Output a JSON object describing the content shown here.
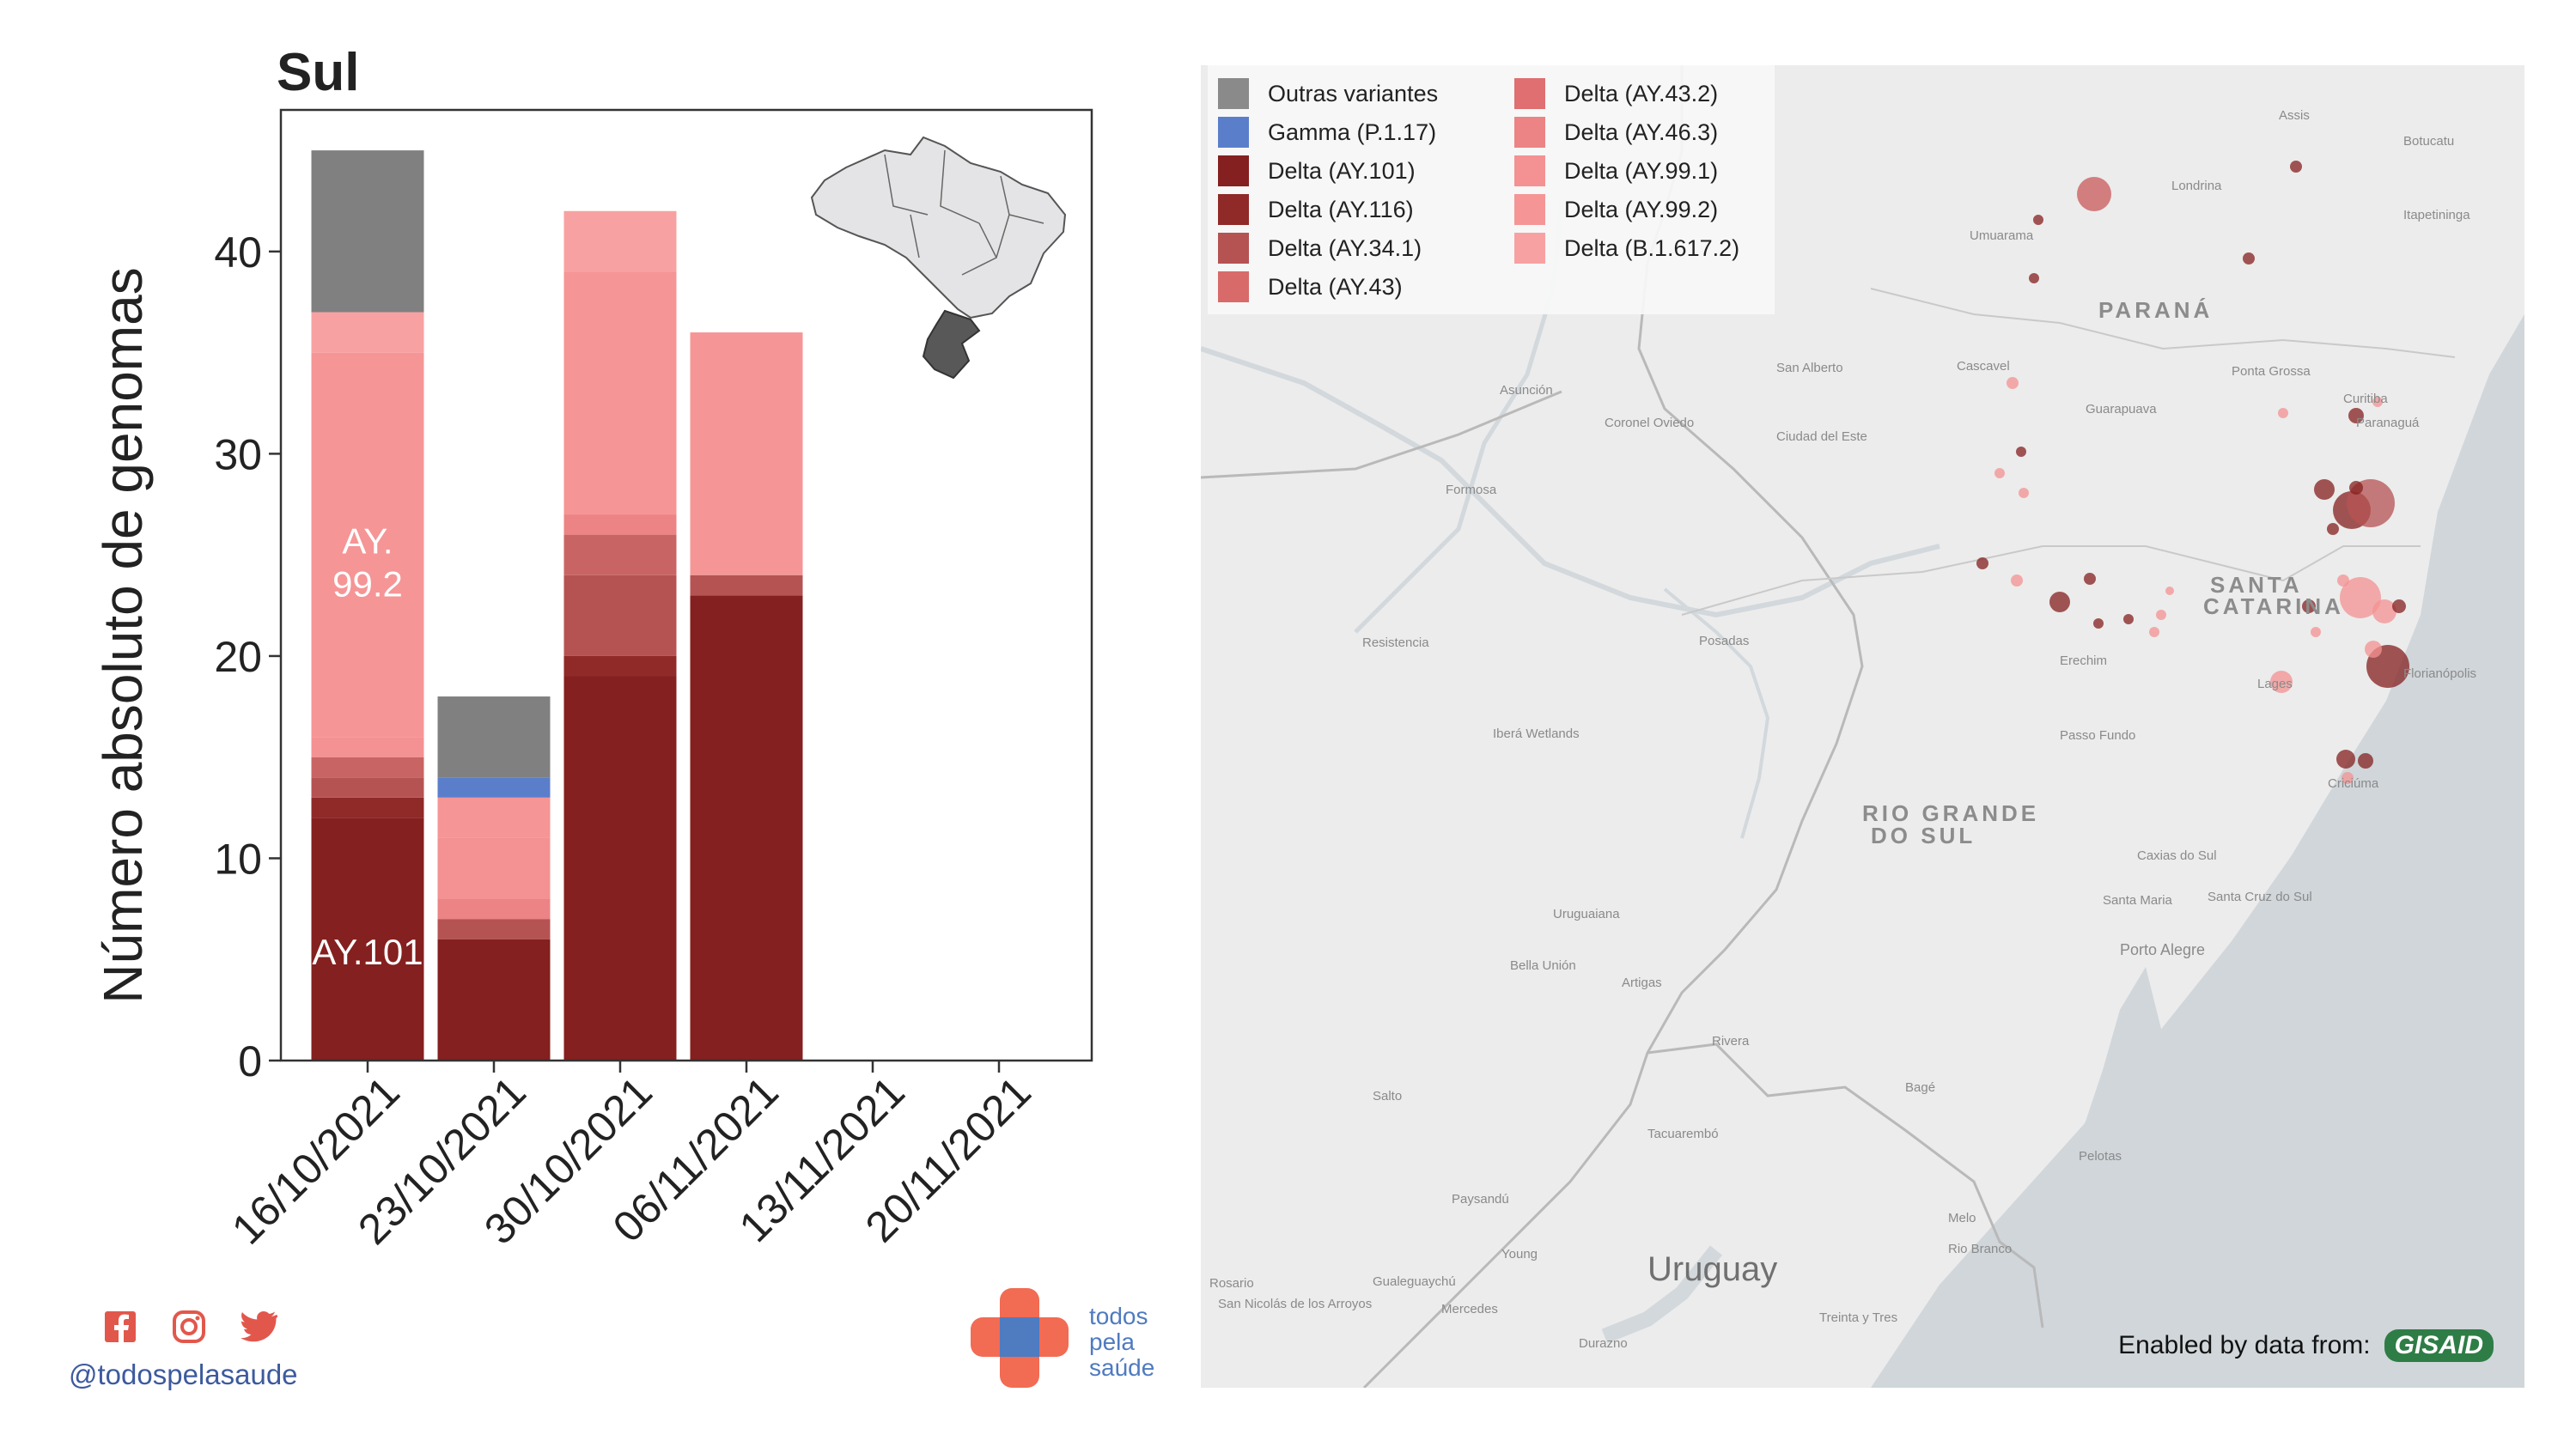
{
  "chart_data": {
    "type": "bar",
    "title": "Sul",
    "ylabel": "Número absoluto de genomas",
    "xlabel": "",
    "ylim": [
      0,
      47
    ],
    "yticks": [
      0,
      10,
      20,
      30,
      40
    ],
    "categories": [
      "16/10/2021",
      "23/10/2021",
      "30/10/2021",
      "06/11/2021",
      "13/11/2021",
      "20/11/2021"
    ],
    "stacked": true,
    "series": [
      {
        "name": "Delta (AY.101)",
        "color": "#84201f",
        "values": [
          12,
          6,
          19,
          23,
          0,
          0
        ]
      },
      {
        "name": "Delta (AY.116)",
        "color": "#8f2a28",
        "values": [
          1,
          0,
          1,
          0,
          0,
          0
        ]
      },
      {
        "name": "Delta (AY.34.1)",
        "color": "#b55353",
        "values": [
          1,
          1,
          4,
          1,
          0,
          0
        ]
      },
      {
        "name": "Delta (AY.43)",
        "color": "#c96464",
        "values": [
          1,
          0,
          2,
          0,
          0,
          0
        ]
      },
      {
        "name": "Delta (AY.43.2)",
        "color": "#df6f70",
        "values": [
          0,
          0,
          0,
          0,
          0,
          0
        ]
      },
      {
        "name": "Delta (AY.46.3)",
        "color": "#ec8384",
        "values": [
          0,
          1,
          1,
          0,
          0,
          0
        ]
      },
      {
        "name": "Delta (AY.99.1)",
        "color": "#f49192",
        "values": [
          1,
          3,
          0,
          0,
          0,
          0
        ]
      },
      {
        "name": "Delta (AY.99.2)",
        "color": "#f59596",
        "values": [
          19,
          2,
          12,
          12,
          0,
          0
        ]
      },
      {
        "name": "Delta (B.1.617.2)",
        "color": "#f8a1a2",
        "values": [
          2,
          0,
          3,
          0,
          0,
          0
        ]
      },
      {
        "name": "Gamma (P.1.17)",
        "color": "#5b7ecb",
        "values": [
          0,
          1,
          0,
          0,
          0,
          0
        ]
      },
      {
        "name": "Outras variantes",
        "color": "#808080",
        "values": [
          8,
          4,
          0,
          0,
          0,
          0
        ]
      }
    ],
    "annotations": [
      {
        "text": "AY.",
        "series": "Delta (AY.99.2)"
      },
      {
        "text": "99.2",
        "series": "Delta (AY.99.2)"
      },
      {
        "text": "AY.101",
        "series": "Delta (AY.101)"
      }
    ],
    "legend_placement": "top-left of map panel"
  },
  "legend": [
    {
      "label": "Outras variantes",
      "color": "#8a8a8a"
    },
    {
      "label": "Gamma (P.1.17)",
      "color": "#5b7ecb"
    },
    {
      "label": "Delta (AY.101)",
      "color": "#84201f"
    },
    {
      "label": "Delta (AY.116)",
      "color": "#8f2a28"
    },
    {
      "label": "Delta (AY.34.1)",
      "color": "#b55353"
    },
    {
      "label": "Delta (AY.43)",
      "color": "#d86a6a"
    },
    {
      "label": "Delta (AY.43.2)",
      "color": "#df6f70"
    },
    {
      "label": "Delta (AY.46.3)",
      "color": "#ec8384"
    },
    {
      "label": "Delta (AY.99.1)",
      "color": "#f49192"
    },
    {
      "label": "Delta (AY.99.2)",
      "color": "#f59596"
    },
    {
      "label": "Delta (B.1.617.2)",
      "color": "#f8a1a2"
    }
  ],
  "map": {
    "region_labels": [
      "PARANÁ",
      "SANTA",
      "CATARINA",
      "RIO GRANDE",
      "DO SUL",
      "Uruguay"
    ],
    "city_labels": [
      "Assis",
      "Londrina",
      "Botucatu",
      "Itapetininga",
      "Umuarama",
      "Cascavel",
      "Ponta Grossa",
      "Curitiba",
      "Paranaguá",
      "Guarapuava",
      "San Alberto",
      "Asunción",
      "Coronel Oviedo",
      "Ciudad del Este",
      "Formosa",
      "Resistencia",
      "Posadas",
      "Iberá Wetlands",
      "Erechim",
      "Lages",
      "Florianópolis",
      "Passo Fundo",
      "Criciúma",
      "Caxias do Sul",
      "Santa Maria",
      "Santa Cruz do Sul",
      "Porto Alegre",
      "Uruguaiana",
      "Bella Unión",
      "Artigas",
      "Rivera",
      "Salto",
      "Tacuarembó",
      "Bagé",
      "Pelotas",
      "Paysandú",
      "Young",
      "Melo",
      "Rio Branco",
      "Gualeguaychú",
      "Mercedes",
      "San Nicolás de los Arroyos",
      "Rosario",
      "Durazno",
      "Treinta y Tres"
    ],
    "attribution_text": "Enabled by data from:",
    "attribution_logo": "GISAID"
  },
  "footer": {
    "handle": "@todospelasaude",
    "brand": [
      "todos",
      "pela",
      "saúde"
    ],
    "social_icons": [
      "facebook-icon",
      "instagram-icon",
      "twitter-icon"
    ]
  },
  "colors": {
    "social": "#e2574c",
    "handle": "#3d5a9e",
    "brand_orange": "#f26b53",
    "brand_blue": "#4f7bc0"
  }
}
